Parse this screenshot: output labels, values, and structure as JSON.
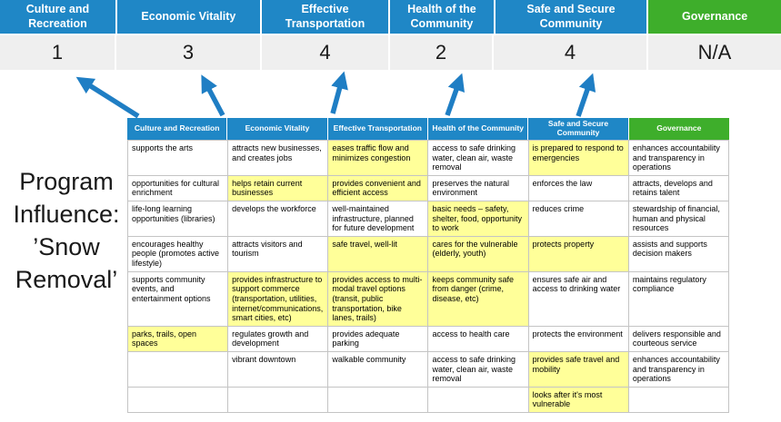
{
  "title": "Program Influence: ’Snow Removal’",
  "colors": {
    "category_blue": "#1F87C6",
    "governance_green": "#3EAE2B",
    "highlight_yellow": "#FFFF99",
    "arrow_blue": "#1F7EC4",
    "score_band_gray": "#EFEFEF"
  },
  "scoreboard": {
    "categories": [
      {
        "label": "Culture and Recreation",
        "score": "1"
      },
      {
        "label": "Economic Vitality",
        "score": "3"
      },
      {
        "label": "Effective Transportation",
        "score": "4"
      },
      {
        "label": "Health of the Community",
        "score": "2"
      },
      {
        "label": "Safe and Secure Community",
        "score": "4"
      },
      {
        "label": "Governance",
        "score": "N/A"
      }
    ]
  },
  "matrix": {
    "headers": [
      "Culture and Recreation",
      "Economic Vitality",
      "Effective Transportation",
      "Health of the Community",
      "Safe and Secure Community",
      "Governance"
    ],
    "rows": [
      {
        "cells": [
          {
            "t": "supports the arts",
            "h": false
          },
          {
            "t": "attracts new businesses, and creates jobs",
            "h": false
          },
          {
            "t": "eases traffic flow and minimizes congestion",
            "h": true
          },
          {
            "t": "access to safe drinking water, clean air, waste removal",
            "h": false
          },
          {
            "t": "is prepared to respond to emergencies",
            "h": true
          },
          {
            "t": "enhances accountability and transparency in operations",
            "h": false
          }
        ]
      },
      {
        "cells": [
          {
            "t": "opportunities for cultural enrichment",
            "h": false
          },
          {
            "t": "helps retain current businesses",
            "h": true
          },
          {
            "t": "provides convenient and efficient access",
            "h": true
          },
          {
            "t": "preserves the natural environment",
            "h": false
          },
          {
            "t": "enforces the law",
            "h": false
          },
          {
            "t": "attracts, develops and retains talent",
            "h": false
          }
        ]
      },
      {
        "cells": [
          {
            "t": "life-long learning opportunities (libraries)",
            "h": false
          },
          {
            "t": "develops the workforce",
            "h": false
          },
          {
            "t": "well-maintained infrastructure, planned for future development",
            "h": false
          },
          {
            "t": "basic needs – safety, shelter, food, opportunity to work",
            "h": true
          },
          {
            "t": "reduces crime",
            "h": false
          },
          {
            "t": "stewardship of financial, human and physical resources",
            "h": false
          }
        ]
      },
      {
        "cells": [
          {
            "t": "encourages healthy people (promotes active lifestyle)",
            "h": false
          },
          {
            "t": "attracts visitors and tourism",
            "h": false
          },
          {
            "t": "safe travel, well-lit",
            "h": true
          },
          {
            "t": "cares for the vulnerable (elderly, youth)",
            "h": true
          },
          {
            "t": "protects property",
            "h": true
          },
          {
            "t": "assists and supports decision makers",
            "h": false
          }
        ]
      },
      {
        "cells": [
          {
            "t": "supports community events, and entertainment options",
            "h": false
          },
          {
            "t": "provides infrastructure to support commerce (transportation, utilities, internet/communications, smart cities, etc)",
            "h": true
          },
          {
            "t": "provides access to multi-modal travel options (transit, public transportation, bike lanes, trails)",
            "h": true
          },
          {
            "t": "keeps community safe from danger (crime, disease, etc)",
            "h": true
          },
          {
            "t": "ensures safe air and access to drinking water",
            "h": false
          },
          {
            "t": "maintains regulatory compliance",
            "h": false
          }
        ]
      },
      {
        "cells": [
          {
            "t": "parks, trails, open spaces",
            "h": true
          },
          {
            "t": "regulates growth and development",
            "h": false
          },
          {
            "t": "provides adequate parking",
            "h": false
          },
          {
            "t": "access to health care",
            "h": false
          },
          {
            "t": "protects the environment",
            "h": false
          },
          {
            "t": "delivers responsible and courteous service",
            "h": false
          }
        ]
      },
      {
        "cells": [
          {
            "t": "",
            "h": false
          },
          {
            "t": "vibrant downtown",
            "h": false
          },
          {
            "t": "walkable community",
            "h": false
          },
          {
            "t": "access to safe drinking water, clean air, waste removal",
            "h": false
          },
          {
            "t": "provides safe travel and mobility",
            "h": true
          },
          {
            "t": "enhances accountability and transparency in operations",
            "h": false
          }
        ]
      },
      {
        "cells": [
          {
            "t": "",
            "h": false
          },
          {
            "t": "",
            "h": false
          },
          {
            "t": "",
            "h": false
          },
          {
            "t": "",
            "h": false
          },
          {
            "t": "looks after it's most vulnerable",
            "h": true
          },
          {
            "t": "",
            "h": false
          }
        ]
      }
    ]
  }
}
